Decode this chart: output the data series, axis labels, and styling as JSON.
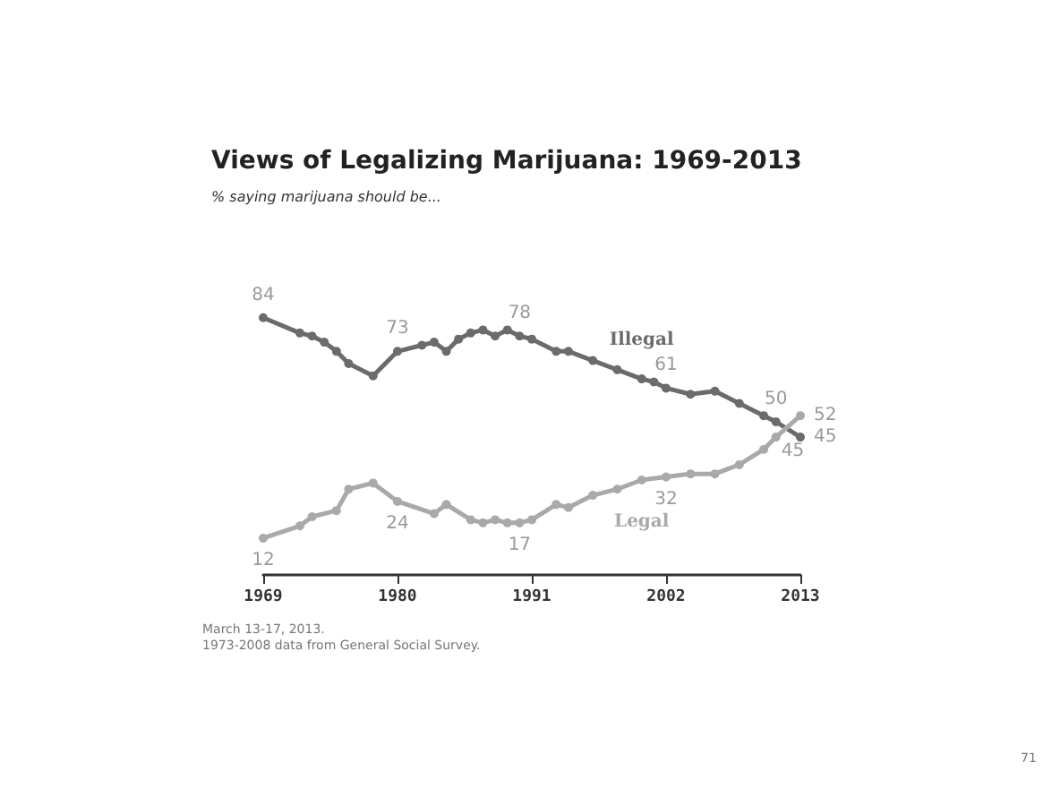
{
  "chart_data": {
    "type": "line",
    "title": "Views of Legalizing Marijuana: 1969-2013",
    "subtitle": "% saying marijuana should be...",
    "annotations": [
      "March 13-17, 2013.",
      "1973-2008 data from General Social Survey.",
      "71"
    ],
    "xlim": [
      1969,
      2013
    ],
    "xticks": [
      1969,
      1980,
      1991,
      2002,
      2013
    ],
    "tick_labels": "x",
    "grid": false,
    "legend": false,
    "marker": "circle",
    "series": [
      {
        "name": "Illegal",
        "color": "#6b6b6b",
        "x": [
          1969,
          1972,
          1973,
          1974,
          1975,
          1976,
          1978,
          1980,
          1982,
          1983,
          1984,
          1985,
          1986,
          1987,
          1988,
          1989,
          1990,
          1991,
          1993,
          1994,
          1996,
          1998,
          2000,
          2001,
          2002,
          2004,
          2006,
          2008,
          2010,
          2011,
          2013
        ],
        "values": [
          84,
          79,
          78,
          76,
          73,
          69,
          65,
          73,
          75,
          76,
          73,
          77,
          79,
          80,
          78,
          80,
          78,
          77,
          73,
          73,
          70,
          67,
          64,
          63,
          61,
          59,
          60,
          56,
          52,
          50,
          45
        ],
        "value_labels": [
          "84",
          null,
          null,
          null,
          null,
          null,
          null,
          "73",
          null,
          null,
          null,
          null,
          null,
          null,
          null,
          null,
          "78",
          null,
          null,
          null,
          null,
          null,
          null,
          null,
          "61",
          null,
          null,
          null,
          null,
          "50",
          "45"
        ]
      },
      {
        "name": "Legal",
        "color": "#a9a9a9",
        "x": [
          1969,
          1972,
          1973,
          1975,
          1976,
          1978,
          1980,
          1983,
          1984,
          1986,
          1987,
          1988,
          1989,
          1990,
          1991,
          1993,
          1994,
          1996,
          1998,
          2000,
          2002,
          2004,
          2006,
          2008,
          2010,
          2011,
          2013
        ],
        "values": [
          12,
          16,
          19,
          21,
          28,
          30,
          24,
          20,
          23,
          18,
          17,
          18,
          17,
          17,
          18,
          23,
          22,
          26,
          28,
          31,
          32,
          33,
          33,
          36,
          41,
          45,
          52
        ],
        "value_labels": [
          "12",
          null,
          null,
          null,
          null,
          null,
          "24",
          null,
          null,
          null,
          null,
          null,
          null,
          "17",
          null,
          null,
          null,
          null,
          null,
          null,
          "32",
          null,
          null,
          null,
          null,
          "45",
          "52"
        ]
      }
    ]
  }
}
